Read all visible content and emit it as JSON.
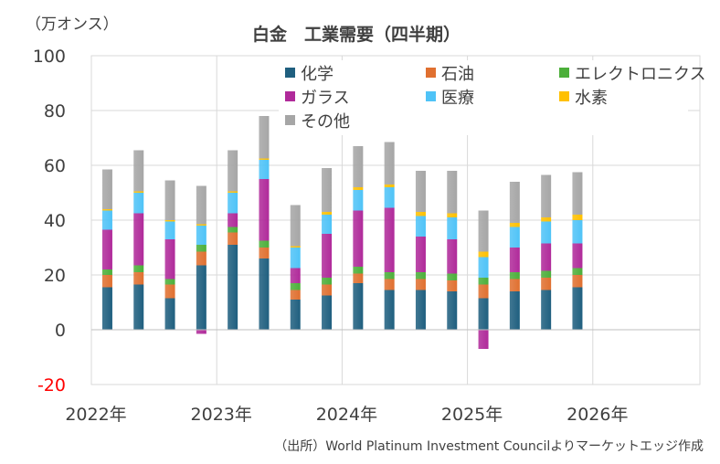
{
  "chart_data": {
    "type": "bar",
    "stacked": true,
    "title": "白金　工業需要（四半期）",
    "unit_label": "（万オンス）",
    "source": "（出所）World Platinum Investment Councilよりマーケットエッジ作成",
    "ylim": [
      -20,
      100
    ],
    "yticks": [
      -20,
      0,
      20,
      40,
      60,
      80,
      100
    ],
    "xtick_labels": [
      "2022年",
      "2023年",
      "2024年",
      "2025年",
      "2026年"
    ],
    "grid": true,
    "legend_position": "top-right",
    "quarters": [
      "2022Q1",
      "2022Q2",
      "2022Q3",
      "2022Q4",
      "2023Q1",
      "2023Q2",
      "2023Q3",
      "2023Q4",
      "2024Q1",
      "2024Q2",
      "2024Q3",
      "2024Q4",
      "2025Q1",
      "2025Q2",
      "2025Q3",
      "2025Q4"
    ],
    "series": [
      {
        "name": "化学",
        "color": "#1f5f7f",
        "values": [
          15.5,
          16.5,
          11.5,
          23.5,
          31.0,
          26.0,
          11.0,
          12.5,
          17.0,
          14.5,
          14.5,
          14.0,
          11.5,
          14.0,
          14.5,
          15.5
        ]
      },
      {
        "name": "石油",
        "color": "#e07030",
        "values": [
          4.5,
          4.5,
          5.0,
          5.0,
          4.5,
          4.0,
          3.5,
          4.0,
          3.5,
          4.0,
          4.0,
          4.0,
          5.0,
          4.5,
          4.5,
          4.5
        ]
      },
      {
        "name": "エレクトロニクス",
        "color": "#4caf3a",
        "values": [
          2.0,
          2.5,
          2.0,
          2.5,
          2.0,
          2.5,
          2.5,
          2.5,
          2.5,
          2.5,
          2.5,
          2.5,
          2.5,
          2.5,
          2.5,
          2.5
        ]
      },
      {
        "name": "ガラス",
        "color": "#b02a9a",
        "values": [
          14.5,
          19.0,
          14.5,
          -1.5,
          5.0,
          22.5,
          5.5,
          16.0,
          20.5,
          23.5,
          13.0,
          12.5,
          -7.0,
          9.0,
          10.0,
          9.0
        ]
      },
      {
        "name": "医療",
        "color": "#4fc3f7",
        "values": [
          7.0,
          7.5,
          6.5,
          7.0,
          7.5,
          7.0,
          7.5,
          7.0,
          7.5,
          7.5,
          7.5,
          8.0,
          7.5,
          7.5,
          8.0,
          8.5
        ]
      },
      {
        "name": "水素",
        "color": "#ffc000",
        "values": [
          0.5,
          0.5,
          0.5,
          0.5,
          0.5,
          0.5,
          0.5,
          1.0,
          1.0,
          1.0,
          1.5,
          1.5,
          2.0,
          1.5,
          1.5,
          2.0
        ]
      },
      {
        "name": "その他",
        "color": "#a6a6a6",
        "values": [
          14.5,
          15.0,
          14.5,
          14.0,
          15.0,
          15.5,
          15.0,
          16.0,
          15.0,
          15.5,
          15.0,
          15.5,
          15.0,
          15.0,
          15.5,
          15.5
        ]
      }
    ]
  }
}
